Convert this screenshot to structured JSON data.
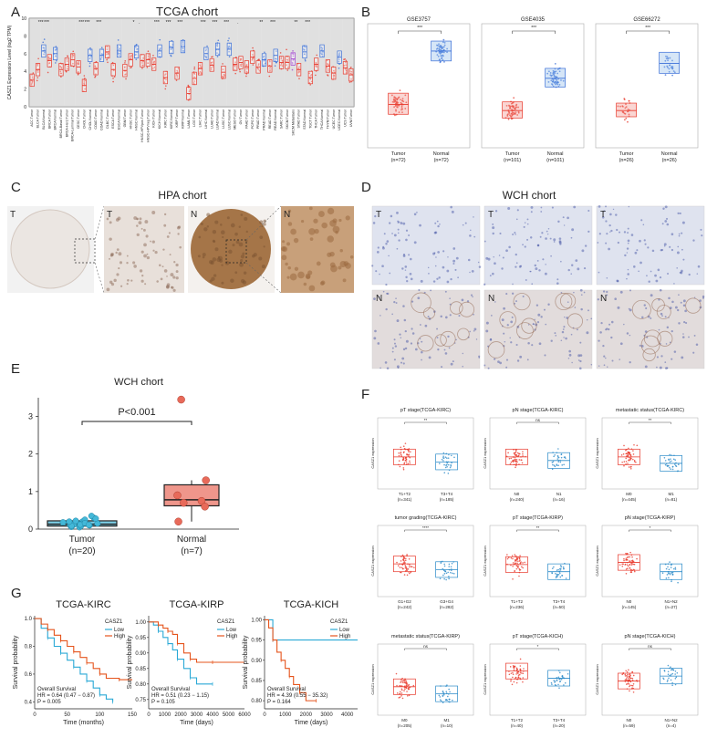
{
  "colors": {
    "tumor": "#e8392c",
    "normal": "#3a6fd8",
    "tumor_box": "#f08a80",
    "normal_box": "#8ab8e8",
    "gray": "#cccccc",
    "surv_low": "#2aa9d6",
    "surv_high": "#e5541c",
    "wch_tumor": "#44b8d8",
    "wch_normal": "#e86a5a"
  },
  "panels": {
    "A": {
      "letter": "A",
      "title": "TCGA chort",
      "ylabel": "CASZ1 Expression Level (log2 TPM)",
      "yticks": [
        "10",
        "8",
        "6",
        "4",
        "2",
        "0"
      ]
    },
    "B": {
      "letter": "B"
    },
    "C": {
      "letter": "C",
      "title": "HPA chort",
      "tiles": [
        "T",
        "T",
        "N",
        "N"
      ]
    },
    "D": {
      "letter": "D",
      "title": "WCH chort",
      "top": [
        "T",
        "T",
        "T"
      ],
      "bottom": [
        "N",
        "N",
        "N"
      ]
    },
    "E": {
      "letter": "E"
    },
    "F": {
      "letter": "F"
    },
    "G": {
      "letter": "G"
    }
  },
  "chart_data": [
    {
      "id": "tcga",
      "type": "box",
      "title": "TCGA chort",
      "ylabel": "CASZ1 Expression Level (log2 TPM)",
      "ylim": [
        0,
        10
      ],
      "categories": [
        "ACC.Tumor",
        "BLCA.Tumor",
        "BLCA.Normal",
        "BRCA.Tumor",
        "BRCA.Normal",
        "BRCA-Basal.Tumor",
        "BRCA-Her2.Tumor",
        "BRCA-Luminal.Tumor",
        "CESC.Tumor",
        "CHOL.Tumor",
        "CHOL.Normal",
        "COAD.Tumor",
        "COAD.Normal",
        "DLBC.Tumor",
        "ESCA.Tumor",
        "ESCA.Normal",
        "GBM.Tumor",
        "HNSC.Tumor",
        "HNSC.Normal",
        "HNSC-HPVpos.Tumor",
        "HNSC-HPVneg.Tumor",
        "KICH.Tumor",
        "KICH.Normal",
        "KIRC.Tumor",
        "KIRC.Normal",
        "KIRP.Tumor",
        "KIRP.Normal",
        "LAML.Tumor",
        "LGG.Tumor",
        "LIHC.Tumor",
        "LIHC.Normal",
        "LUAD.Tumor",
        "LUAD.Normal",
        "LUSC.Tumor",
        "LUSC.Normal",
        "MESO.Tumor",
        "OV.Tumor",
        "PAAD.Tumor",
        "PCPG.Tumor",
        "PRAD.Tumor",
        "PRAD.Normal",
        "READ.Tumor",
        "READ.Normal",
        "SARC.Tumor",
        "SKCM.Tumor",
        "SKCM.Metastasis",
        "STAD.Tumor",
        "STAD.Normal",
        "TGCT.Tumor",
        "THCA.Tumor",
        "THCA.Normal",
        "THYM.Tumor",
        "UCEC.Tumor",
        "UCEC.Normal",
        "UCS.Tumor",
        "UVM.Tumor"
      ],
      "medians": [
        3.0,
        4.2,
        6.3,
        5.2,
        6.0,
        4.2,
        4.8,
        5.3,
        4.5,
        2.4,
        5.8,
        4.3,
        5.8,
        6.2,
        4.2,
        6.3,
        4.1,
        5.3,
        6.2,
        5.2,
        5.3,
        4.8,
        6.3,
        3.3,
        6.7,
        3.8,
        6.8,
        1.5,
        3.2,
        4.3,
        6.0,
        4.7,
        6.5,
        3.9,
        6.5,
        4.8,
        5.0,
        4.5,
        5.6,
        4.5,
        5.3,
        4.6,
        5.8,
        5.0,
        5.0,
        5.4,
        4.2,
        6.2,
        3.3,
        4.8,
        6.3,
        4.6,
        3.8,
        5.6,
        4.4,
        3.6
      ],
      "significance": [
        "",
        "***",
        "***",
        "",
        "",
        "",
        "",
        "",
        "***",
        "***",
        "",
        "***",
        "",
        "",
        "",
        "",
        "",
        "*",
        ".",
        "",
        "",
        "***",
        "",
        "***",
        "",
        "***",
        "",
        "",
        "",
        "***",
        "",
        "***",
        "",
        "***",
        "",
        ".",
        "",
        "",
        "",
        "**",
        "",
        "***",
        "",
        "",
        "",
        "**",
        "",
        "***",
        "",
        "",
        "",
        "",
        "",
        "",
        ""
      ]
    },
    {
      "id": "GSE3757",
      "type": "box",
      "title": "GSE3757",
      "categories": [
        "Tumor\n(n=72)",
        "Normal\n(n=72)"
      ],
      "medians": [
        0.35,
        0.78
      ],
      "q1": [
        0.27,
        0.7
      ],
      "q3": [
        0.44,
        0.86
      ],
      "n": [
        72,
        72
      ],
      "sig": "***"
    },
    {
      "id": "GSE4035",
      "type": "box",
      "title": "GSE4035",
      "categories": [
        "Tumor\n(n=101)",
        "Normal\n(n=101)"
      ],
      "medians": [
        0.3,
        0.56
      ],
      "q1": [
        0.24,
        0.49
      ],
      "q3": [
        0.37,
        0.64
      ],
      "n": [
        101,
        101
      ],
      "sig": "***"
    },
    {
      "id": "GSE66272",
      "type": "box",
      "title": "GSE66272",
      "categories": [
        "Tumor\n(n=26)",
        "Normal\n(n=26)"
      ],
      "medians": [
        0.3,
        0.68
      ],
      "q1": [
        0.25,
        0.6
      ],
      "q3": [
        0.36,
        0.77
      ],
      "n": [
        26,
        26
      ],
      "sig": "***"
    },
    {
      "id": "wch",
      "type": "box",
      "title": "WCH chort",
      "ylim": [
        0,
        3.5
      ],
      "yticks": [
        0,
        1,
        2,
        3
      ],
      "categories": [
        "Tumor",
        "Normal"
      ],
      "ns": [
        "(n=20)",
        "(n=7)"
      ],
      "pvalue": "P<0.001",
      "tumor_points": [
        0.05,
        0.08,
        0.1,
        0.12,
        0.15,
        0.2,
        0.18,
        0.22,
        0.25,
        0.3,
        0.35,
        0.1,
        0.06,
        0.14,
        0.28,
        0.12,
        0.09,
        0.16,
        0.2,
        0.11
      ],
      "normal_points": [
        3.45,
        1.3,
        0.9,
        0.75,
        0.7,
        0.6,
        0.2
      ],
      "box": {
        "tumor": [
          0.08,
          0.13,
          0.22
        ],
        "normal": [
          0.62,
          0.78,
          1.18
        ]
      }
    },
    {
      "id": "pT_KIRC",
      "type": "box",
      "title": "pT stage(TCGA-KIRC)",
      "ylabel": "CASZ1 expression",
      "categories": [
        "T1+T2",
        "T3+T4"
      ],
      "ns": [
        "(n=341)",
        "(n=185)"
      ],
      "sig": "**",
      "medians": [
        0.45,
        0.38
      ]
    },
    {
      "id": "pN_KIRC",
      "type": "box",
      "title": "pN stage(TCGA-KIRC)",
      "ylabel": "CASZ1 expression",
      "categories": [
        "N0",
        "N1"
      ],
      "ns": [
        "(n=240)",
        "(n=16)"
      ],
      "sig": "ns",
      "medians": [
        0.45,
        0.4
      ]
    },
    {
      "id": "meta_KIRC",
      "type": "box",
      "title": "metastatic status(TCGA-KIRC)",
      "ylabel": "CASZ1 expression",
      "categories": [
        "M0",
        "M1"
      ],
      "ns": [
        "(n=445)",
        "(n=81)"
      ],
      "sig": "**",
      "medians": [
        0.45,
        0.36
      ]
    },
    {
      "id": "grade_KIRC",
      "type": "box",
      "title": "tumor grading(TCGA-KIRC)",
      "ylabel": "CASZ1 expression",
      "categories": [
        "G1+G2",
        "G3+G4"
      ],
      "ns": [
        "(n=242)",
        "(n=282)"
      ],
      "sig": "****",
      "medians": [
        0.46,
        0.38
      ]
    },
    {
      "id": "pT_KIRP",
      "type": "box",
      "title": "pT stage(TCGA-KIRP)",
      "ylabel": "CASZ1 expression",
      "categories": [
        "T1+T2",
        "T3+T4"
      ],
      "ns": [
        "(n=236)",
        "(n=50)"
      ],
      "sig": "**",
      "medians": [
        0.45,
        0.35
      ]
    },
    {
      "id": "pN_KIRP",
      "type": "box",
      "title": "pN stage(TCGA-KIRP)",
      "ylabel": "CASZ1 expression",
      "categories": [
        "N0",
        "N1+N2"
      ],
      "ns": [
        "(n=145)",
        "(n=27)"
      ],
      "sig": "*",
      "medians": [
        0.48,
        0.35
      ]
    },
    {
      "id": "meta_KIRP",
      "type": "box",
      "title": "metastatic status(TCGA-KIRP)",
      "ylabel": "CASZ1 expression",
      "categories": [
        "M0",
        "M1"
      ],
      "ns": [
        "(n=205)",
        "(n=10)"
      ],
      "sig": "ns",
      "medians": [
        0.4,
        0.3
      ]
    },
    {
      "id": "pT_KICH",
      "type": "box",
      "title": "pT stage(TCGA-KICH)",
      "ylabel": "CASZ1 expression",
      "categories": [
        "T1+T2",
        "T3+T4"
      ],
      "ns": [
        "(n=40)",
        "(n=20)"
      ],
      "sig": "*",
      "medians": [
        0.62,
        0.52
      ]
    },
    {
      "id": "pN_KICH",
      "type": "box",
      "title": "pN stage(TCGA-KICH)",
      "ylabel": "CASZ1 expression",
      "categories": [
        "N0",
        "N1+N2"
      ],
      "ns": [
        "(n=59)",
        "(n=4)"
      ],
      "sig": "ns",
      "medians": [
        0.48,
        0.55
      ]
    },
    {
      "id": "surv_KIRC",
      "type": "line",
      "title": "TCGA-KIRC",
      "xlabel": "Time (months)",
      "ylabel": "Survival probability",
      "xticks": [
        "0",
        "50",
        "100",
        "150"
      ],
      "xlim": [
        0,
        150
      ],
      "yticks": [
        "1.0",
        "0.8",
        "0.6",
        "0.4"
      ],
      "ylim": [
        0.35,
        1.02
      ],
      "legend_title": "CASZ1",
      "legend": [
        "Low",
        "High"
      ],
      "annotation": [
        "Overall Survival",
        "HR = 0.64 (0.47 − 0.87)",
        "P = 0.005"
      ],
      "series": [
        {
          "name": "Low",
          "x": [
            0,
            10,
            20,
            30,
            40,
            50,
            60,
            70,
            80,
            90,
            100,
            110,
            120
          ],
          "y": [
            1,
            0.93,
            0.86,
            0.8,
            0.75,
            0.7,
            0.65,
            0.6,
            0.55,
            0.5,
            0.45,
            0.42,
            0.4
          ]
        },
        {
          "name": "High",
          "x": [
            0,
            10,
            20,
            30,
            40,
            50,
            60,
            70,
            80,
            90,
            100,
            110,
            130,
            150
          ],
          "y": [
            1,
            0.96,
            0.92,
            0.88,
            0.84,
            0.8,
            0.76,
            0.72,
            0.68,
            0.64,
            0.6,
            0.57,
            0.56,
            0.56
          ]
        }
      ]
    },
    {
      "id": "surv_KIRP",
      "type": "line",
      "title": "TCGA-KIRP",
      "xlabel": "Time (days)",
      "ylabel": "Survival probability",
      "xticks": [
        "0",
        "1000",
        "2000",
        "3000",
        "4000",
        "5000",
        "6000"
      ],
      "xlim": [
        0,
        6000
      ],
      "yticks": [
        "1.00",
        "0.95",
        "0.90",
        "0.85",
        "0.80",
        "0.75"
      ],
      "ylim": [
        0.72,
        1.02
      ],
      "legend_title": "CASZ1",
      "legend": [
        "Low",
        "High"
      ],
      "annotation": [
        "Overall Survival",
        "HR = 0.51 (0.23 − 1.15)",
        "P = 0.105"
      ],
      "series": [
        {
          "name": "Low",
          "x": [
            0,
            300,
            600,
            900,
            1200,
            1500,
            1800,
            2200,
            2600,
            3000,
            4000
          ],
          "y": [
            1,
            0.99,
            0.97,
            0.95,
            0.93,
            0.91,
            0.88,
            0.85,
            0.82,
            0.8,
            0.8
          ]
        },
        {
          "name": "High",
          "x": [
            0,
            300,
            600,
            900,
            1200,
            1500,
            1800,
            2200,
            2600,
            3000,
            4000,
            6000
          ],
          "y": [
            1,
            1,
            0.99,
            0.98,
            0.97,
            0.96,
            0.93,
            0.9,
            0.88,
            0.87,
            0.87,
            0.87
          ]
        }
      ]
    },
    {
      "id": "surv_KICH",
      "type": "line",
      "title": "TCGA-KICH",
      "xlabel": "Time (days)",
      "ylabel": "Survival probability",
      "xticks": [
        "0",
        "1000",
        "2000",
        "3000",
        "4000"
      ],
      "xlim": [
        0,
        4500
      ],
      "yticks": [
        "1.00",
        "0.95",
        "0.90",
        "0.85",
        "0.80"
      ],
      "ylim": [
        0.78,
        1.01
      ],
      "legend_title": "CASZ1",
      "legend": [
        "Low",
        "High"
      ],
      "annotation": [
        "Overall Survival",
        "HR = 4.39 (0.55 − 35.32)",
        "P = 0.164"
      ],
      "series": [
        {
          "name": "Low",
          "x": [
            0,
            300,
            400,
            4500
          ],
          "y": [
            1,
            1,
            0.95,
            0.95
          ]
        },
        {
          "name": "High",
          "x": [
            0,
            200,
            400,
            600,
            800,
            1000,
            1200,
            1400,
            1700,
            2000,
            2500
          ],
          "y": [
            1,
            0.98,
            0.95,
            0.92,
            0.9,
            0.88,
            0.86,
            0.84,
            0.82,
            0.8,
            0.8
          ]
        }
      ]
    }
  ]
}
